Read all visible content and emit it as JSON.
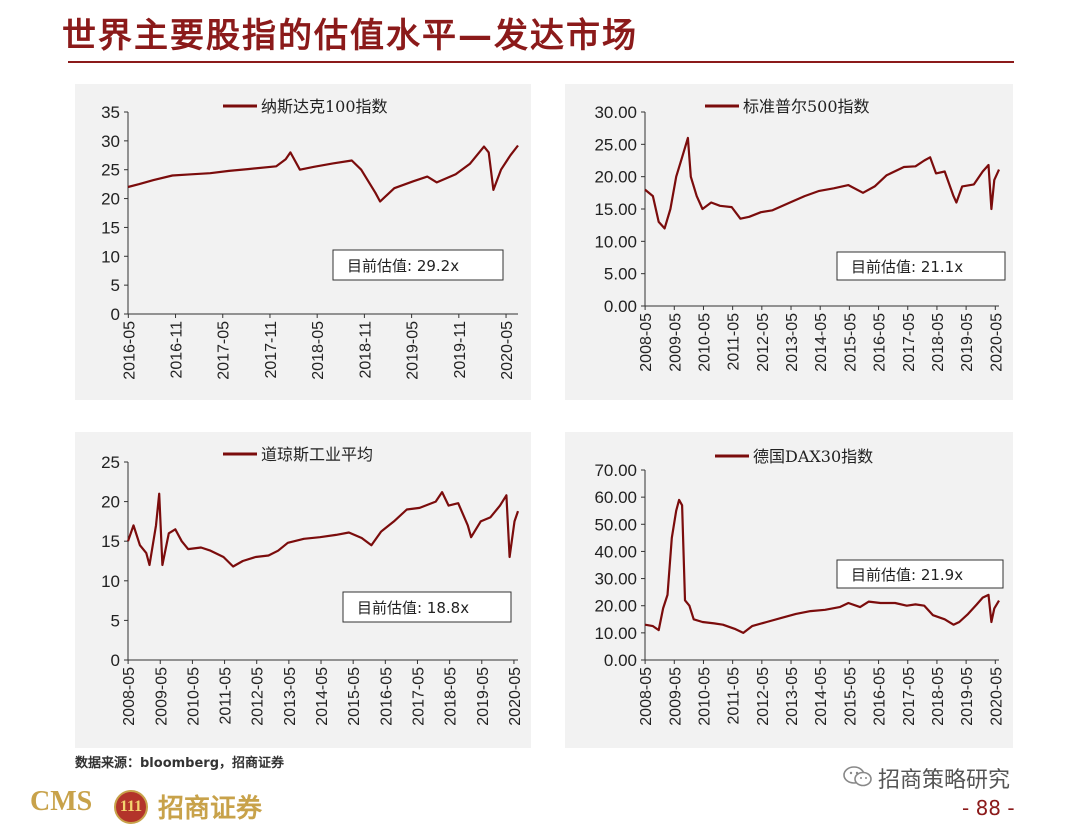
{
  "page_title": "世界主要股指的估值水平—发达市场",
  "source_note": "数据来源：bloomberg，招商证券",
  "footer": {
    "logo_text": "CMS",
    "logo_zh": "招商证券",
    "logo_badge": "111",
    "wechat_text": "招商策略研究",
    "page_number": "- 88 -"
  },
  "colors": {
    "series": "#7B0C0C",
    "accent": "#8B1A1A",
    "panel_bg": "#f2f2f2"
  },
  "chart_data": [
    {
      "type": "line",
      "title": "",
      "legend": "纳斯达克100指数",
      "annotation": "目前估值:  29.2x",
      "ylim": [
        0,
        35
      ],
      "yticks": [
        "0",
        "5",
        "10",
        "15",
        "20",
        "25",
        "30",
        "35"
      ],
      "xticks": [
        "2016-05",
        "2016-11",
        "2017-05",
        "2017-11",
        "2018-05",
        "2018-11",
        "2019-05",
        "2019-11",
        "2020-05"
      ],
      "xrange": [
        2016.33,
        2020.46
      ],
      "series": [
        {
          "points": [
            [
              2016.33,
              22
            ],
            [
              2016.45,
              22.5
            ],
            [
              2016.6,
              23.2
            ],
            [
              2016.8,
              24
            ],
            [
              2017.0,
              24.2
            ],
            [
              2017.2,
              24.4
            ],
            [
              2017.4,
              24.8
            ],
            [
              2017.6,
              25.1
            ],
            [
              2017.9,
              25.6
            ],
            [
              2018.0,
              26.8
            ],
            [
              2018.05,
              28.0
            ],
            [
              2018.15,
              25.0
            ],
            [
              2018.3,
              25.5
            ],
            [
              2018.5,
              26.1
            ],
            [
              2018.7,
              26.6
            ],
            [
              2018.8,
              25.0
            ],
            [
              2018.95,
              21.0
            ],
            [
              2019.0,
              19.5
            ],
            [
              2019.15,
              21.8
            ],
            [
              2019.35,
              23.0
            ],
            [
              2019.5,
              23.8
            ],
            [
              2019.6,
              22.8
            ],
            [
              2019.8,
              24.2
            ],
            [
              2019.95,
              26.0
            ],
            [
              2020.1,
              29.0
            ],
            [
              2020.15,
              28.0
            ],
            [
              2020.2,
              21.5
            ],
            [
              2020.28,
              25.0
            ],
            [
              2020.38,
              27.5
            ],
            [
              2020.46,
              29.2
            ]
          ]
        }
      ]
    },
    {
      "type": "line",
      "title": "",
      "legend": "标准普尔500指数",
      "annotation": "目前估值:  21.1x",
      "ylim": [
        0,
        30
      ],
      "yticks": [
        "0.00",
        "5.00",
        "10.00",
        "15.00",
        "20.00",
        "25.00",
        "30.00"
      ],
      "xticks": [
        "2008-05",
        "2009-05",
        "2010-05",
        "2011-05",
        "2012-05",
        "2013-05",
        "2014-05",
        "2015-05",
        "2016-05",
        "2017-05",
        "2018-05",
        "2019-05",
        "2020-05"
      ],
      "xrange": [
        2008.33,
        2020.46
      ],
      "series": [
        {
          "points": [
            [
              2008.33,
              18
            ],
            [
              2008.6,
              17
            ],
            [
              2008.8,
              13
            ],
            [
              2009.0,
              12
            ],
            [
              2009.2,
              15
            ],
            [
              2009.4,
              20
            ],
            [
              2009.6,
              23
            ],
            [
              2009.8,
              26
            ],
            [
              2009.9,
              20
            ],
            [
              2010.1,
              17
            ],
            [
              2010.3,
              15
            ],
            [
              2010.6,
              16
            ],
            [
              2010.9,
              15.5
            ],
            [
              2011.3,
              15.3
            ],
            [
              2011.6,
              13.5
            ],
            [
              2011.9,
              13.8
            ],
            [
              2012.3,
              14.5
            ],
            [
              2012.7,
              14.8
            ],
            [
              2013.3,
              16
            ],
            [
              2013.8,
              17
            ],
            [
              2014.3,
              17.8
            ],
            [
              2014.8,
              18.2
            ],
            [
              2015.3,
              18.7
            ],
            [
              2015.8,
              17.5
            ],
            [
              2016.2,
              18.5
            ],
            [
              2016.6,
              20.2
            ],
            [
              2017.2,
              21.5
            ],
            [
              2017.6,
              21.6
            ],
            [
              2017.9,
              22.5
            ],
            [
              2018.1,
              23
            ],
            [
              2018.3,
              20.5
            ],
            [
              2018.6,
              20.8
            ],
            [
              2018.9,
              17
            ],
            [
              2019.0,
              16
            ],
            [
              2019.2,
              18.5
            ],
            [
              2019.6,
              18.8
            ],
            [
              2019.9,
              20.8
            ],
            [
              2020.1,
              21.8
            ],
            [
              2020.2,
              15
            ],
            [
              2020.3,
              19.5
            ],
            [
              2020.46,
              21.1
            ]
          ]
        }
      ]
    },
    {
      "type": "line",
      "title": "",
      "legend": "道琼斯工业平均",
      "annotation": "目前估值:  18.8x",
      "ylim": [
        0,
        25
      ],
      "yticks": [
        "0",
        "5",
        "10",
        "15",
        "20",
        "25"
      ],
      "xticks": [
        "2008-05",
        "2009-05",
        "2010-05",
        "2011-05",
        "2012-05",
        "2013-05",
        "2014-05",
        "2015-05",
        "2016-05",
        "2017-05",
        "2018-05",
        "2019-05",
        "2020-05"
      ],
      "xrange": [
        2008.33,
        2020.46
      ],
      "series": [
        {
          "points": [
            [
              2008.33,
              15
            ],
            [
              2008.5,
              17
            ],
            [
              2008.7,
              14.5
            ],
            [
              2008.9,
              13.5
            ],
            [
              2009.0,
              12
            ],
            [
              2009.2,
              17
            ],
            [
              2009.3,
              21
            ],
            [
              2009.4,
              12
            ],
            [
              2009.6,
              16
            ],
            [
              2009.8,
              16.5
            ],
            [
              2010.0,
              15
            ],
            [
              2010.2,
              14
            ],
            [
              2010.6,
              14.2
            ],
            [
              2010.9,
              13.8
            ],
            [
              2011.3,
              13
            ],
            [
              2011.6,
              11.8
            ],
            [
              2011.9,
              12.5
            ],
            [
              2012.3,
              13
            ],
            [
              2012.7,
              13.2
            ],
            [
              2013.0,
              13.8
            ],
            [
              2013.3,
              14.8
            ],
            [
              2013.8,
              15.3
            ],
            [
              2014.3,
              15.5
            ],
            [
              2014.8,
              15.8
            ],
            [
              2015.2,
              16.1
            ],
            [
              2015.6,
              15.4
            ],
            [
              2015.9,
              14.5
            ],
            [
              2016.2,
              16.2
            ],
            [
              2016.6,
              17.5
            ],
            [
              2017.0,
              19
            ],
            [
              2017.4,
              19.2
            ],
            [
              2017.9,
              20
            ],
            [
              2018.1,
              21.2
            ],
            [
              2018.3,
              19.5
            ],
            [
              2018.6,
              19.8
            ],
            [
              2018.9,
              17
            ],
            [
              2019.0,
              15.5
            ],
            [
              2019.3,
              17.5
            ],
            [
              2019.6,
              18
            ],
            [
              2019.9,
              19.5
            ],
            [
              2020.1,
              20.8
            ],
            [
              2020.2,
              13
            ],
            [
              2020.35,
              17.5
            ],
            [
              2020.46,
              18.8
            ]
          ]
        }
      ]
    },
    {
      "type": "line",
      "title": "",
      "legend": "德国DAX30指数",
      "annotation": "目前估值:  21.9x",
      "ylim": [
        0,
        70
      ],
      "yticks": [
        "0.00",
        "10.00",
        "20.00",
        "30.00",
        "40.00",
        "50.00",
        "60.00",
        "70.00"
      ],
      "xticks": [
        "2008-05",
        "2009-05",
        "2010-05",
        "2011-05",
        "2012-05",
        "2013-05",
        "2014-05",
        "2015-05",
        "2016-05",
        "2017-05",
        "2018-05",
        "2019-05",
        "2020-05"
      ],
      "xrange": [
        2008.33,
        2020.46
      ],
      "series": [
        {
          "points": [
            [
              2008.33,
              13
            ],
            [
              2008.6,
              12.5
            ],
            [
              2008.8,
              11
            ],
            [
              2008.95,
              19
            ],
            [
              2009.1,
              24
            ],
            [
              2009.25,
              45
            ],
            [
              2009.4,
              55
            ],
            [
              2009.5,
              59
            ],
            [
              2009.6,
              57
            ],
            [
              2009.7,
              22
            ],
            [
              2009.85,
              20
            ],
            [
              2010.0,
              15
            ],
            [
              2010.3,
              14
            ],
            [
              2010.7,
              13.5
            ],
            [
              2011.0,
              13
            ],
            [
              2011.4,
              11.5
            ],
            [
              2011.7,
              10
            ],
            [
              2012.0,
              12.5
            ],
            [
              2012.5,
              14
            ],
            [
              2013.0,
              15.5
            ],
            [
              2013.5,
              17
            ],
            [
              2014.0,
              18
            ],
            [
              2014.5,
              18.5
            ],
            [
              2015.0,
              19.5
            ],
            [
              2015.3,
              21
            ],
            [
              2015.7,
              19.5
            ],
            [
              2016.0,
              21.5
            ],
            [
              2016.4,
              21
            ],
            [
              2016.9,
              21
            ],
            [
              2017.3,
              20
            ],
            [
              2017.6,
              20.5
            ],
            [
              2017.9,
              20
            ],
            [
              2018.2,
              16.5
            ],
            [
              2018.6,
              15
            ],
            [
              2018.9,
              13
            ],
            [
              2019.1,
              14
            ],
            [
              2019.4,
              17
            ],
            [
              2019.7,
              20.5
            ],
            [
              2019.9,
              23
            ],
            [
              2020.1,
              24
            ],
            [
              2020.2,
              14
            ],
            [
              2020.3,
              19
            ],
            [
              2020.46,
              21.9
            ]
          ]
        }
      ]
    }
  ]
}
